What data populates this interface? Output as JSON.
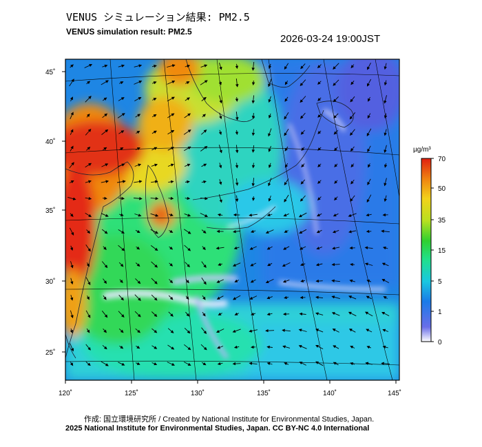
{
  "title_jp": "VENUS シミュレーション結果: PM2.5",
  "title_en": "VENUS simulation result: PM2.5",
  "timestamp": "2026-03-24 19:00JST",
  "lon_ticks": [
    "120˚",
    "125˚",
    "130˚",
    "135˚",
    "140˚",
    "145˚"
  ],
  "lat_ticks": [
    "45˚",
    "40˚",
    "35˚",
    "30˚",
    "25˚"
  ],
  "colorbar": {
    "unit": "µg/m³",
    "ticks": [
      "70",
      "50",
      "35",
      "15",
      "5",
      "1",
      "0"
    ],
    "colors": [
      "#ffffff",
      "#6a6ee8",
      "#1a7be8",
      "#19c8e0",
      "#21e08a",
      "#30d030",
      "#b8e020",
      "#f2d21a",
      "#f08a10",
      "#e02010"
    ]
  },
  "credit_line1": "作成: 国立環境研究所 / Created by National Institute for Environmental Studies, Japan.",
  "credit_line2": "2025 National Institute for Environmental Studies, Japan. CC BY-NC 4.0 International"
}
